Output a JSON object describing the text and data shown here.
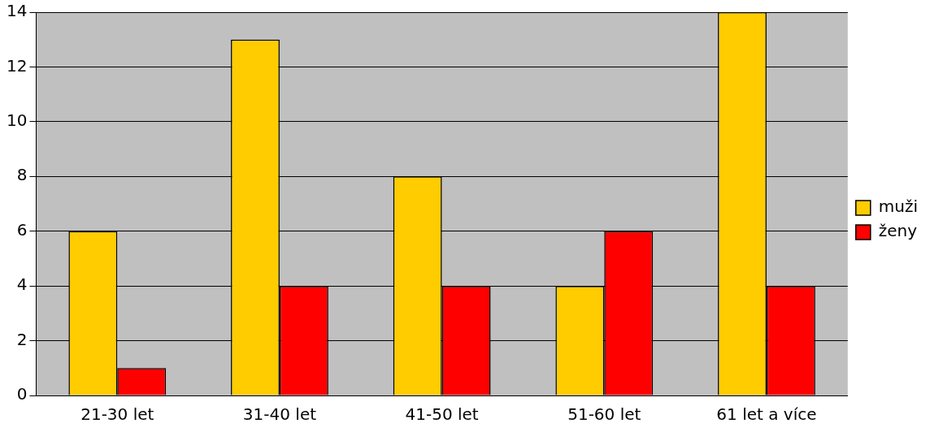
{
  "chart_data": {
    "type": "bar",
    "categories": [
      "21-30 let",
      "31-40 let",
      "41-50 let",
      "51-60 let",
      "61 let a více"
    ],
    "series": [
      {
        "name": "muži",
        "color": "#ffcc00",
        "values": [
          6,
          13,
          8,
          4,
          14
        ]
      },
      {
        "name": "ženy",
        "color": "#ff0000",
        "values": [
          1,
          4,
          4,
          6,
          4
        ]
      }
    ],
    "ylim": [
      0,
      14
    ],
    "yticks": [
      0,
      2,
      4,
      6,
      8,
      10,
      12,
      14
    ],
    "grid": "y",
    "legend": "right"
  }
}
